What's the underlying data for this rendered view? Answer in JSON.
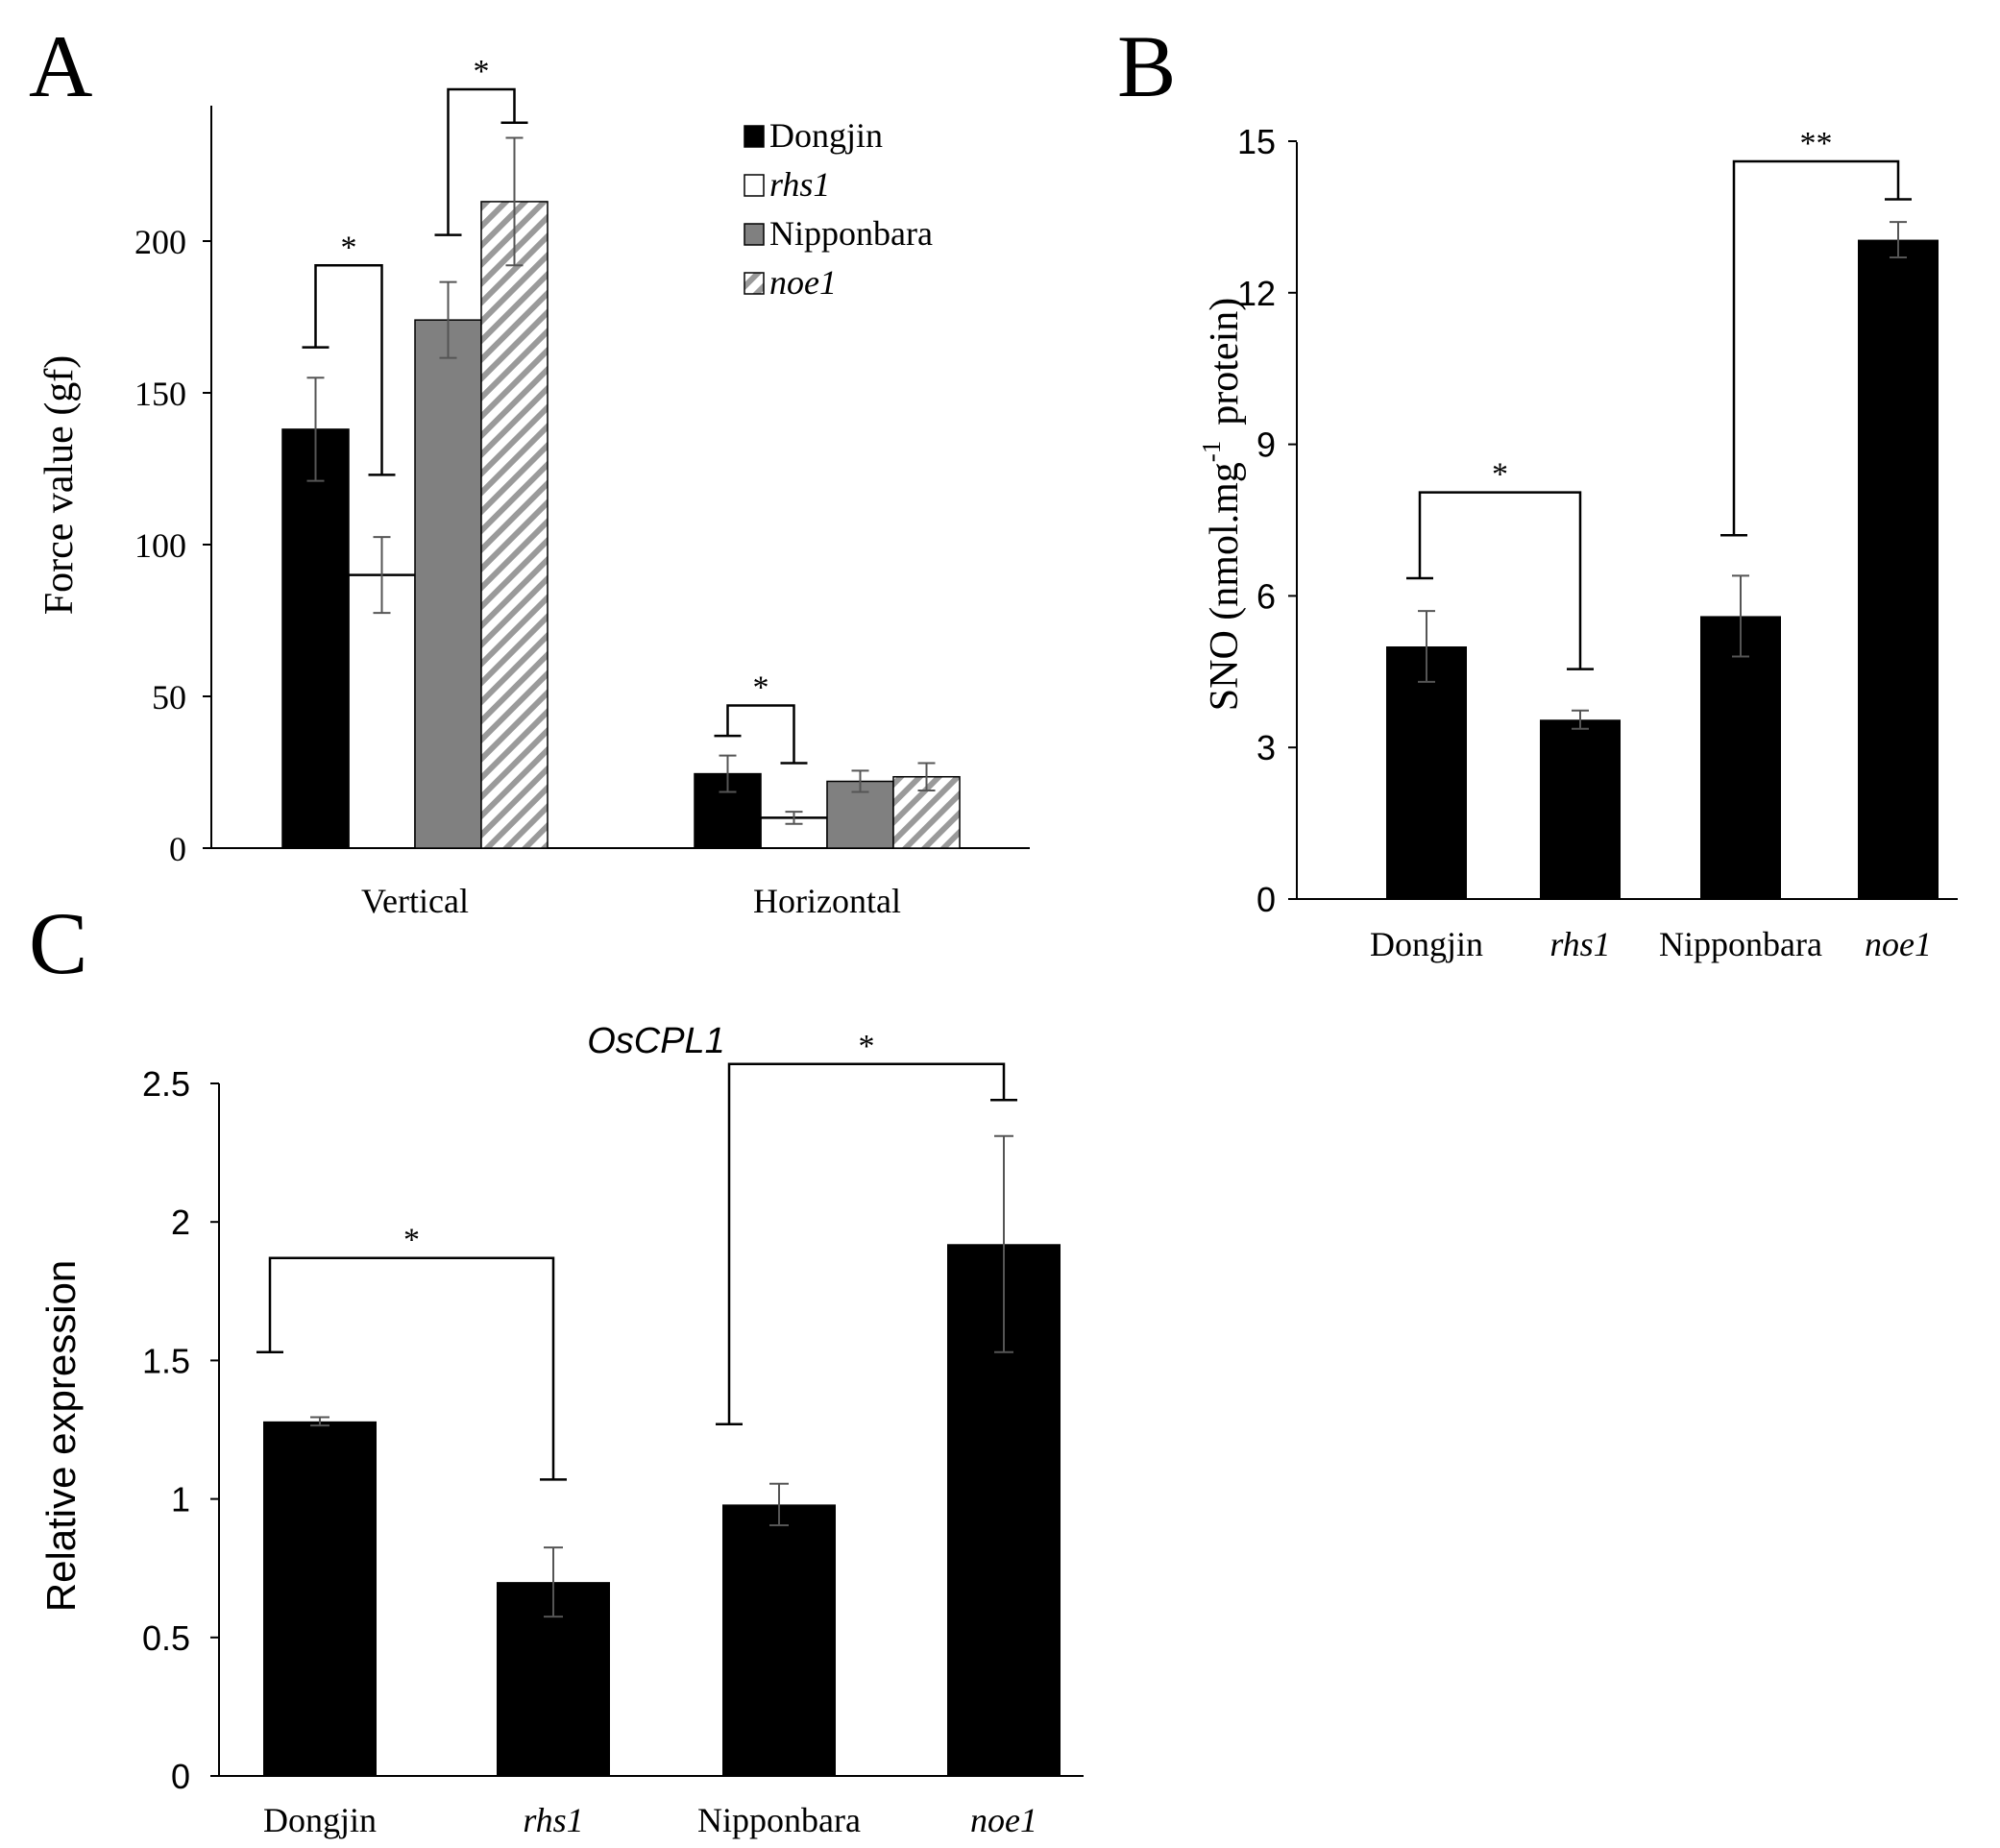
{
  "panels": {
    "A": {
      "letter": "A",
      "chart_data": {
        "type": "bar",
        "title": "",
        "xlabel": "",
        "ylabel": "Force value (gf)",
        "ylim": [
          0,
          245
        ],
        "yticks": [
          0,
          50,
          100,
          150,
          200
        ],
        "grid": false,
        "legend_position": "top-right",
        "categories": [
          "Vertical",
          "Horizontal"
        ],
        "series": [
          {
            "name": "Dongjin",
            "italic": false,
            "fill": "#000000",
            "values": [
              138,
              24.5
            ],
            "errors": [
              17,
              6
            ]
          },
          {
            "name": "rhs1",
            "italic": true,
            "fill": "#ffffff",
            "values": [
              90,
              10
            ],
            "errors": [
              12.5,
              2
            ]
          },
          {
            "name": "Nipponbara",
            "italic": false,
            "fill": "#808080",
            "values": [
              174,
              22
            ],
            "errors": [
              12.5,
              3.5
            ]
          },
          {
            "name": "noe1",
            "italic": true,
            "fill": "hatch",
            "values": [
              213,
              23.5
            ],
            "errors": [
              21,
              4.5
            ]
          }
        ],
        "annotations": [
          {
            "label": "*",
            "category": 0,
            "from_series": 0,
            "to_series": 1,
            "left_drop": 165,
            "right_drop": 123,
            "top": 192
          },
          {
            "label": "*",
            "category": 0,
            "from_series": 2,
            "to_series": 3,
            "left_drop": 202,
            "right_drop": 239,
            "top": 250
          },
          {
            "label": "*",
            "category": 1,
            "from_series": 0,
            "to_series": 1,
            "left_drop": 37,
            "right_drop": 28,
            "top": 47
          }
        ]
      }
    },
    "B": {
      "letter": "B",
      "chart_data": {
        "type": "bar",
        "title": "",
        "xlabel": "",
        "ylabel_main": "SNO (nmol.mg",
        "ylabel_superscript": "-1",
        "ylabel_tail": "protein)",
        "ylim": [
          0,
          15
        ],
        "yticks": [
          0,
          3,
          6,
          9,
          12,
          15
        ],
        "grid": false,
        "categories": [
          "Dongjin",
          "rhs1",
          "Nipponbara",
          "noe1"
        ],
        "italic_categories": [
          false,
          true,
          false,
          true
        ],
        "values": [
          5.0,
          3.55,
          5.6,
          13.05
        ],
        "errors": [
          0.7,
          0.18,
          0.8,
          0.35
        ],
        "annotations": [
          {
            "label": "*",
            "from": 0,
            "to": 1,
            "left_drop": 6.35,
            "right_drop": 4.55,
            "top": 8.05
          },
          {
            "label": "**",
            "from": 2,
            "to": 3,
            "left_drop": 7.2,
            "right_drop": 13.85,
            "top": 14.6
          }
        ]
      }
    },
    "C": {
      "letter": "C",
      "chart_data": {
        "type": "bar",
        "title": "OsCPL1",
        "xlabel": "",
        "ylabel": "Relative expression",
        "ylim": [
          0,
          2.5
        ],
        "yticks": [
          "0",
          "0.5",
          "1",
          "1.5",
          "2",
          "2.5"
        ],
        "grid": false,
        "categories": [
          "Dongjin",
          "rhs1",
          "Nipponbara",
          "noe1"
        ],
        "italic_categories": [
          false,
          true,
          false,
          true
        ],
        "values": [
          1.28,
          0.7,
          0.98,
          1.92
        ],
        "errors": [
          0.015,
          0.125,
          0.075,
          0.39
        ],
        "annotations": [
          {
            "label": "*",
            "from": 0,
            "to": 1,
            "left_drop": 1.53,
            "right_drop": 1.07,
            "top": 1.87
          },
          {
            "label": "*",
            "from": 2,
            "to": 3,
            "left_drop": 1.27,
            "right_drop": 2.44,
            "top": 2.57
          }
        ]
      }
    }
  }
}
